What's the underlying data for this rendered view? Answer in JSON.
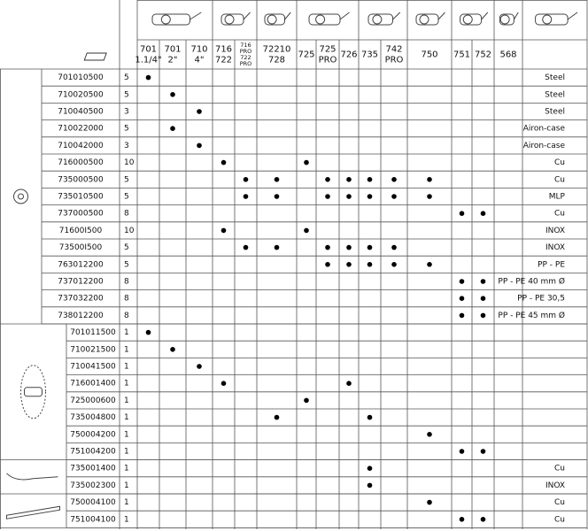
{
  "columns": [
    [
      "701",
      "1.1/4\""
    ],
    [
      "701",
      "2\""
    ],
    [
      "710",
      "4\""
    ],
    [
      "716",
      "722"
    ],
    [
      "716",
      "PRO",
      "722",
      "PRO"
    ],
    [
      "72210",
      "728"
    ],
    [
      "725"
    ],
    [
      "725",
      "PRO"
    ],
    [
      "726"
    ],
    [
      "735"
    ],
    [
      "742",
      "PRO"
    ],
    [
      "750"
    ],
    [
      "751"
    ],
    [
      "752"
    ],
    [
      "568"
    ]
  ],
  "groups": [
    {
      "rows": [
        {
          "code": "701010500",
          "qty": "5",
          "material": "Steel",
          "dots": [
            true,
            false,
            false,
            false,
            false,
            false,
            false,
            false,
            false,
            false,
            false,
            false,
            false,
            false,
            false
          ]
        },
        {
          "code": "710020500",
          "qty": "5",
          "material": "Steel",
          "dots": [
            false,
            true,
            false,
            false,
            false,
            false,
            false,
            false,
            false,
            false,
            false,
            false,
            false,
            false,
            false
          ]
        },
        {
          "code": "710040500",
          "qty": "3",
          "material": "Steel",
          "dots": [
            false,
            false,
            true,
            false,
            false,
            false,
            false,
            false,
            false,
            false,
            false,
            false,
            false,
            false,
            false
          ]
        },
        {
          "code": "710022000",
          "qty": "5",
          "material": "Airon-case",
          "dots": [
            false,
            true,
            false,
            false,
            false,
            false,
            false,
            false,
            false,
            false,
            false,
            false,
            false,
            false,
            false
          ]
        },
        {
          "code": "710042000",
          "qty": "3",
          "material": "Airon-case",
          "dots": [
            false,
            false,
            true,
            false,
            false,
            false,
            false,
            false,
            false,
            false,
            false,
            false,
            false,
            false,
            false
          ]
        },
        {
          "code": "716000500",
          "qty": "10",
          "material": "Cu",
          "dots": [
            false,
            false,
            false,
            true,
            false,
            false,
            true,
            false,
            false,
            false,
            false,
            false,
            false,
            false,
            false
          ]
        },
        {
          "code": "735000500",
          "qty": "5",
          "material": "Cu",
          "dots": [
            false,
            false,
            false,
            false,
            true,
            true,
            false,
            true,
            true,
            true,
            true,
            true,
            false,
            false,
            false
          ]
        },
        {
          "code": "735010500",
          "qty": "5",
          "material": "MLP",
          "dots": [
            false,
            false,
            false,
            false,
            true,
            true,
            false,
            true,
            true,
            true,
            true,
            true,
            false,
            false,
            false
          ]
        },
        {
          "code": "737000500",
          "qty": "8",
          "material": "Cu",
          "dots": [
            false,
            false,
            false,
            false,
            false,
            false,
            false,
            false,
            false,
            false,
            false,
            false,
            true,
            true,
            false
          ]
        },
        {
          "code": "71600I500",
          "qty": "10",
          "material": "INOX",
          "dots": [
            false,
            false,
            false,
            true,
            false,
            false,
            true,
            false,
            false,
            false,
            false,
            false,
            false,
            false,
            false
          ]
        },
        {
          "code": "73500I500",
          "qty": "5",
          "material": "INOX",
          "dots": [
            false,
            false,
            false,
            false,
            true,
            true,
            false,
            true,
            true,
            true,
            true,
            false,
            false,
            false,
            false
          ]
        },
        {
          "code": "763012200",
          "qty": "5",
          "material": "PP - PE",
          "dots": [
            false,
            false,
            false,
            false,
            false,
            false,
            false,
            true,
            true,
            true,
            true,
            true,
            false,
            false,
            false
          ]
        },
        {
          "code": "737012200",
          "qty": "8",
          "material": "PP - PE 40 mm Ø",
          "dots": [
            false,
            false,
            false,
            false,
            false,
            false,
            false,
            false,
            false,
            false,
            false,
            false,
            true,
            true,
            false
          ]
        },
        {
          "code": "737032200",
          "qty": "8",
          "material": "PP - PE 30,5",
          "dots": [
            false,
            false,
            false,
            false,
            false,
            false,
            false,
            false,
            false,
            false,
            false,
            false,
            true,
            true,
            false
          ]
        },
        {
          "code": "738012200",
          "qty": "8",
          "material": "PP - PE 45 mm Ø",
          "dots": [
            false,
            false,
            false,
            false,
            false,
            false,
            false,
            false,
            false,
            false,
            false,
            false,
            true,
            true,
            false
          ]
        }
      ]
    },
    {
      "rows": [
        {
          "code": "701011500",
          "qty": "1",
          "material": null,
          "dots": [
            true,
            false,
            false,
            false,
            false,
            false,
            false,
            false,
            false,
            false,
            false,
            false,
            false,
            false,
            false
          ]
        },
        {
          "code": "710021500",
          "qty": "1",
          "material": null,
          "dots": [
            false,
            true,
            false,
            false,
            false,
            false,
            false,
            false,
            false,
            false,
            false,
            false,
            false,
            false,
            false
          ]
        },
        {
          "code": "710041500",
          "qty": "1",
          "material": null,
          "dots": [
            false,
            false,
            true,
            false,
            false,
            false,
            false,
            false,
            false,
            false,
            false,
            false,
            false,
            false,
            false
          ]
        },
        {
          "code": "716001400",
          "qty": "1",
          "material": null,
          "dots": [
            false,
            false,
            false,
            true,
            false,
            false,
            false,
            false,
            true,
            false,
            false,
            false,
            false,
            false,
            false
          ]
        },
        {
          "code": "725000600",
          "qty": "1",
          "material": null,
          "dots": [
            false,
            false,
            false,
            false,
            false,
            false,
            true,
            false,
            false,
            false,
            false,
            false,
            false,
            false,
            false
          ]
        },
        {
          "code": "735004800",
          "qty": "1",
          "material": null,
          "dots": [
            false,
            false,
            false,
            false,
            false,
            true,
            false,
            false,
            false,
            true,
            false,
            false,
            false,
            false,
            false
          ]
        },
        {
          "code": "750004200",
          "qty": "1",
          "material": null,
          "dots": [
            false,
            false,
            false,
            false,
            false,
            false,
            false,
            false,
            false,
            false,
            false,
            true,
            false,
            false,
            false
          ]
        },
        {
          "code": "751004200",
          "qty": "1",
          "material": null,
          "dots": [
            false,
            false,
            false,
            false,
            false,
            false,
            false,
            false,
            false,
            false,
            false,
            false,
            true,
            true,
            false
          ]
        }
      ]
    },
    {
      "rows": [
        {
          "code": "735001400",
          "qty": "1",
          "material": "Cu",
          "dots": [
            false,
            false,
            false,
            false,
            false,
            false,
            false,
            false,
            false,
            true,
            false,
            false,
            false,
            false,
            false
          ]
        },
        {
          "code": "735002300",
          "qty": "1",
          "material": "INOX",
          "dots": [
            false,
            false,
            false,
            false,
            false,
            false,
            false,
            false,
            false,
            true,
            false,
            false,
            false,
            false,
            false
          ]
        }
      ]
    },
    {
      "rows": [
        {
          "code": "750004100",
          "qty": "1",
          "material": "Cu",
          "dots": [
            false,
            false,
            false,
            false,
            false,
            false,
            false,
            false,
            false,
            false,
            false,
            true,
            false,
            false,
            false
          ]
        },
        {
          "code": "751004100",
          "qty": "1",
          "material": "Cu",
          "dots": [
            false,
            false,
            false,
            false,
            false,
            false,
            false,
            false,
            false,
            false,
            false,
            false,
            true,
            true,
            false
          ]
        }
      ]
    }
  ]
}
